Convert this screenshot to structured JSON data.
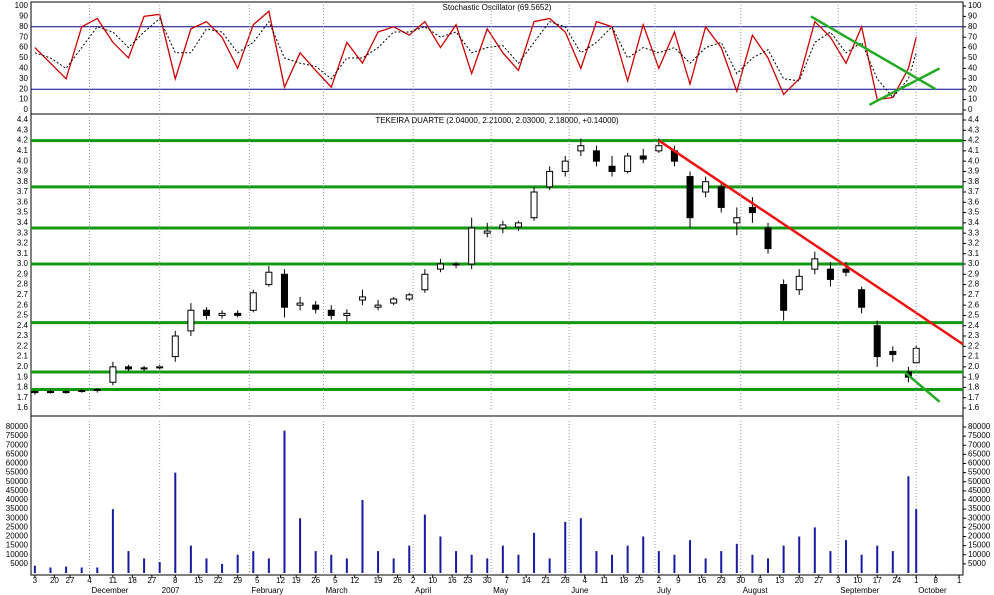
{
  "chart_data": [
    {
      "type": "line",
      "title": "Stochastic Oscillator (69.5652)",
      "x": [
        0,
        4,
        8,
        12,
        16,
        20,
        24,
        28,
        32,
        36,
        40,
        44,
        48,
        52,
        56,
        60,
        64,
        68,
        72,
        76,
        80,
        84,
        88,
        92,
        96,
        100,
        104,
        108,
        112,
        116,
        120,
        124,
        128,
        132,
        136,
        140,
        144,
        148,
        152,
        156,
        160,
        164,
        168,
        172,
        176,
        180,
        184,
        188,
        192,
        196,
        200,
        204,
        208,
        212,
        216,
        220,
        224,
        226
      ],
      "series": [
        {
          "color": "#cc0000",
          "values": [
            60,
            45,
            30,
            80,
            88,
            65,
            50,
            90,
            92,
            30,
            78,
            85,
            70,
            40,
            82,
            95,
            22,
            55,
            38,
            22,
            65,
            45,
            75,
            80,
            72,
            85,
            60,
            82,
            35,
            78,
            55,
            38,
            85,
            88,
            75,
            40,
            85,
            80,
            28,
            82,
            40,
            75,
            25,
            80,
            60,
            18,
            72,
            50,
            15,
            30,
            85,
            70,
            45,
            80,
            10,
            12,
            40,
            70
          ]
        },
        {
          "color": "#000000",
          "dashed": true,
          "values": [
            55,
            50,
            40,
            60,
            80,
            75,
            60,
            75,
            88,
            55,
            55,
            78,
            75,
            55,
            65,
            85,
            50,
            45,
            42,
            30,
            50,
            50,
            60,
            75,
            75,
            80,
            70,
            75,
            55,
            60,
            62,
            45,
            65,
            85,
            80,
            55,
            65,
            80,
            50,
            60,
            55,
            60,
            45,
            60,
            65,
            35,
            50,
            58,
            30,
            28,
            65,
            75,
            55,
            65,
            30,
            12,
            30,
            55
          ]
        }
      ],
      "xlim": [
        -1,
        238
      ],
      "ylim": [
        0,
        100
      ],
      "yticks": [
        0,
        10,
        20,
        30,
        40,
        50,
        60,
        70,
        80,
        90,
        100
      ],
      "levels": [
        {
          "value": 80,
          "color": "#00008b"
        },
        {
          "value": 20,
          "color": "#00008b"
        }
      ],
      "trendlines": [
        {
          "color": "#22aa22",
          "x": [
            199,
            231
          ],
          "y": [
            90,
            20
          ]
        },
        {
          "color": "#22aa22",
          "x": [
            214,
            232
          ],
          "y": [
            5,
            40
          ]
        }
      ]
    },
    {
      "type": "candlestick",
      "title": "TEKEIRA DUARTE (2.04000, 2.21000, 2.03000, 2.18000, +0.14000)",
      "x": [
        0,
        4,
        8,
        12,
        16,
        20,
        24,
        28,
        32,
        36,
        40,
        44,
        48,
        52,
        56,
        60,
        64,
        68,
        72,
        76,
        80,
        84,
        88,
        92,
        96,
        100,
        104,
        108,
        112,
        116,
        120,
        124,
        128,
        132,
        136,
        140,
        144,
        148,
        152,
        156,
        160,
        164,
        168,
        172,
        176,
        180,
        184,
        188,
        192,
        196,
        200,
        204,
        208,
        212,
        216,
        220,
        224,
        226
      ],
      "open": [
        1.75,
        1.76,
        1.75,
        1.76,
        1.77,
        1.85,
        2.0,
        1.98,
        1.99,
        2.1,
        2.35,
        2.55,
        2.5,
        2.52,
        2.55,
        2.8,
        2.9,
        2.6,
        2.6,
        2.55,
        2.5,
        2.65,
        2.58,
        2.62,
        2.66,
        2.75,
        2.95,
        3.0,
        3.0,
        3.3,
        3.35,
        3.36,
        3.45,
        3.75,
        3.9,
        4.1,
        4.1,
        3.95,
        3.9,
        4.05,
        4.1,
        4.1,
        3.85,
        3.7,
        3.75,
        3.4,
        3.55,
        3.35,
        2.8,
        2.75,
        2.95,
        2.95,
        2.95,
        2.75,
        2.4,
        2.15,
        1.95,
        2.04
      ],
      "high": [
        1.77,
        1.78,
        1.77,
        1.78,
        1.79,
        2.05,
        2.02,
        2.01,
        2.02,
        2.35,
        2.62,
        2.58,
        2.55,
        2.55,
        2.75,
        2.98,
        2.95,
        2.68,
        2.64,
        2.6,
        2.56,
        2.75,
        2.65,
        2.68,
        2.72,
        2.95,
        3.05,
        3.02,
        3.45,
        3.4,
        3.42,
        3.42,
        3.75,
        3.95,
        4.05,
        4.22,
        4.15,
        4.05,
        4.08,
        4.12,
        4.22,
        4.15,
        3.9,
        3.85,
        3.8,
        3.55,
        3.65,
        3.4,
        2.85,
        2.95,
        3.12,
        3.02,
        3.02,
        2.78,
        2.45,
        2.2,
        2.0,
        2.21
      ],
      "low": [
        1.73,
        1.74,
        1.74,
        1.75,
        1.75,
        1.82,
        1.96,
        1.96,
        1.97,
        2.05,
        2.3,
        2.46,
        2.47,
        2.48,
        2.53,
        2.78,
        2.48,
        2.55,
        2.52,
        2.46,
        2.44,
        2.6,
        2.55,
        2.6,
        2.64,
        2.72,
        2.92,
        2.96,
        2.95,
        3.26,
        3.3,
        3.32,
        3.42,
        3.72,
        3.85,
        4.05,
        3.95,
        3.85,
        3.88,
        3.98,
        4.08,
        3.95,
        3.35,
        3.65,
        3.5,
        3.28,
        3.4,
        3.1,
        2.45,
        2.7,
        2.9,
        2.78,
        2.88,
        2.52,
        2.0,
        2.05,
        1.85,
        2.03
      ],
      "close": [
        1.76,
        1.75,
        1.76,
        1.77,
        1.78,
        2.0,
        1.98,
        1.99,
        2.0,
        2.3,
        2.55,
        2.5,
        2.52,
        2.5,
        2.72,
        2.92,
        2.58,
        2.62,
        2.56,
        2.5,
        2.52,
        2.68,
        2.6,
        2.66,
        2.7,
        2.9,
        3.0,
        2.99,
        3.35,
        3.32,
        3.38,
        3.4,
        3.7,
        3.9,
        4.0,
        4.15,
        4.0,
        3.9,
        4.05,
        4.02,
        4.15,
        4.0,
        3.45,
        3.8,
        3.55,
        3.45,
        3.5,
        3.15,
        2.55,
        2.88,
        3.05,
        2.85,
        2.92,
        2.58,
        2.1,
        2.12,
        1.9,
        2.18
      ],
      "xlim": [
        -1,
        238
      ],
      "ylim": [
        1.6,
        4.4
      ],
      "yticks": [
        1.6,
        1.7,
        1.8,
        1.9,
        {
          "value": 2,
          "label": "2.0"
        },
        2.1,
        2.2,
        2.3,
        2.4,
        2.5,
        2.6,
        2.7,
        2.8,
        2.9,
        {
          "value": 3,
          "label": "3.0"
        },
        3.1,
        3.2,
        3.3,
        3.4,
        3.5,
        3.6,
        3.7,
        3.8,
        3.9,
        {
          "value": 4,
          "label": "4.0"
        },
        4.1,
        4.2,
        4.3,
        4.4
      ],
      "levels": [
        {
          "value": 4.2,
          "color": "#119911"
        },
        {
          "value": 3.75,
          "color": "#119911"
        },
        {
          "value": 3.35,
          "color": "#119911"
        },
        {
          "value": 3.0,
          "color": "#119911"
        },
        {
          "value": 2.43,
          "color": "#119911"
        },
        {
          "value": 1.95,
          "color": "#119911"
        },
        {
          "value": 1.78,
          "color": "#119911"
        }
      ],
      "trendlines": [
        {
          "color": "#ee1111",
          "x": [
            160,
            238
          ],
          "y": [
            4.2,
            2.22
          ]
        },
        {
          "color": "#22aa22",
          "x": [
            223,
            232
          ],
          "y": [
            1.95,
            1.66
          ]
        }
      ]
    },
    {
      "type": "bar",
      "x": [
        0,
        4,
        8,
        12,
        16,
        20,
        24,
        28,
        32,
        36,
        40,
        44,
        48,
        52,
        56,
        60,
        64,
        68,
        72,
        76,
        80,
        84,
        88,
        92,
        96,
        100,
        104,
        108,
        112,
        116,
        120,
        124,
        128,
        132,
        136,
        140,
        144,
        148,
        152,
        156,
        160,
        164,
        168,
        172,
        176,
        180,
        184,
        188,
        192,
        196,
        200,
        204,
        208,
        212,
        216,
        220,
        224,
        226
      ],
      "values": [
        4000,
        3000,
        3500,
        3000,
        3000,
        35000,
        12000,
        8000,
        6000,
        55000,
        15000,
        8000,
        5000,
        10000,
        12000,
        8000,
        78000,
        30000,
        12000,
        10000,
        8000,
        40000,
        12000,
        8000,
        15000,
        32000,
        20000,
        12000,
        10000,
        8000,
        15000,
        10000,
        22000,
        8000,
        28000,
        30000,
        12000,
        10000,
        15000,
        20000,
        12000,
        10000,
        18000,
        8000,
        12000,
        16000,
        10000,
        8000,
        15000,
        20000,
        25000,
        12000,
        18000,
        10000,
        15000,
        12000,
        53000,
        35000
      ],
      "color": "#1a1aa0",
      "xlim": [
        -1,
        238
      ],
      "ylim": [
        0,
        80000
      ],
      "yticks": [
        5000,
        10000,
        15000,
        20000,
        25000,
        30000,
        35000,
        40000,
        45000,
        50000,
        55000,
        60000,
        65000,
        70000,
        75000,
        80000
      ],
      "xticks": [
        {
          "value": 0,
          "label": "3"
        },
        {
          "value": 5,
          "label": "20"
        },
        {
          "value": 9,
          "label": "27"
        },
        {
          "value": 14,
          "label": "4"
        },
        {
          "value": 20,
          "label": "11"
        },
        {
          "value": 25,
          "label": "18"
        },
        {
          "value": 30,
          "label": "27"
        },
        {
          "value": 36,
          "label": "8"
        },
        {
          "value": 42,
          "label": "15"
        },
        {
          "value": 47,
          "label": "22"
        },
        {
          "value": 52,
          "label": "29"
        },
        {
          "value": 57,
          "label": "5"
        },
        {
          "value": 63,
          "label": "12"
        },
        {
          "value": 67,
          "label": "19"
        },
        {
          "value": 72,
          "label": "26"
        },
        {
          "value": 77,
          "label": "5"
        },
        {
          "value": 82,
          "label": "12"
        },
        {
          "value": 88,
          "label": "19"
        },
        {
          "value": 93,
          "label": "26"
        },
        {
          "value": 97,
          "label": "2"
        },
        {
          "value": 102,
          "label": "10"
        },
        {
          "value": 107,
          "label": "16"
        },
        {
          "value": 111,
          "label": "23"
        },
        {
          "value": 116,
          "label": "30"
        },
        {
          "value": 121,
          "label": "7"
        },
        {
          "value": 126,
          "label": "14"
        },
        {
          "value": 131,
          "label": "21"
        },
        {
          "value": 136,
          "label": "28"
        },
        {
          "value": 141,
          "label": "4"
        },
        {
          "value": 146,
          "label": "11"
        },
        {
          "value": 151,
          "label": "18"
        },
        {
          "value": 155,
          "label": "25"
        },
        {
          "value": 160,
          "label": "2"
        },
        {
          "value": 165,
          "label": "9"
        },
        {
          "value": 171,
          "label": "16"
        },
        {
          "value": 176,
          "label": "23"
        },
        {
          "value": 181,
          "label": "30"
        },
        {
          "value": 186,
          "label": "6"
        },
        {
          "value": 191,
          "label": "13"
        },
        {
          "value": 196,
          "label": "20"
        },
        {
          "value": 201,
          "label": "27"
        },
        {
          "value": 206,
          "label": "3"
        },
        {
          "value": 211,
          "label": "10"
        },
        {
          "value": 216,
          "label": "17"
        },
        {
          "value": 221,
          "label": "24"
        },
        {
          "value": 226,
          "label": "1"
        },
        {
          "value": 231,
          "label": "8"
        },
        {
          "value": 237,
          "label": "1"
        }
      ],
      "months": [
        {
          "value": 14,
          "label": "December"
        },
        {
          "value": 32,
          "label": "2007"
        },
        {
          "value": 55,
          "label": "February"
        },
        {
          "value": 74,
          "label": "March"
        },
        {
          "value": 97,
          "label": "April"
        },
        {
          "value": 117,
          "label": "May"
        },
        {
          "value": 137,
          "label": "June"
        },
        {
          "value": 159,
          "label": "July"
        },
        {
          "value": 181,
          "label": "August"
        },
        {
          "value": 206,
          "label": "September"
        },
        {
          "value": 226,
          "label": "October"
        }
      ]
    }
  ]
}
